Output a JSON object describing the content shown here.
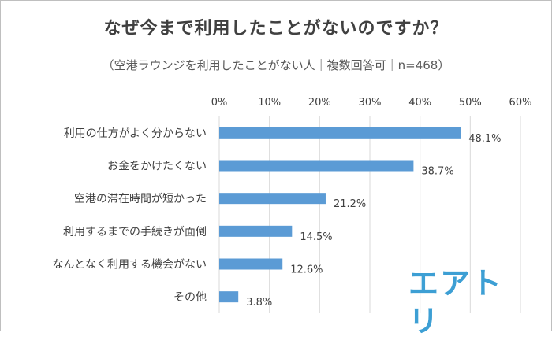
{
  "title": "なぜ今まで利用したことがないのですか？",
  "subtitle": "（空港ラウンジを利用したことがない人｜複数回答可｜n=468）",
  "logo_text": "エアトリ",
  "colors": {
    "bar": "#5b9bd5",
    "grid": "#d9d9d9",
    "text": "#404040",
    "logo": "#3d9fd4"
  },
  "chart_data": {
    "type": "bar",
    "orientation": "horizontal",
    "categories": [
      "利用の仕方がよく分からない",
      "お金をかけたくない",
      "空港の滞在時間が短かった",
      "利用するまでの手続きが面倒",
      "なんとなく利用する機会がない",
      "その他"
    ],
    "values": [
      48.1,
      38.7,
      21.2,
      14.5,
      12.6,
      3.8
    ],
    "data_labels": [
      "48.1%",
      "38.7%",
      "21.2%",
      "14.5%",
      "12.6%",
      "3.8%"
    ],
    "xlim": [
      0,
      60
    ],
    "xticks": [
      0,
      10,
      20,
      30,
      40,
      50,
      60
    ],
    "xtick_labels": [
      "0%",
      "10%",
      "20%",
      "30%",
      "40%",
      "50%",
      "60%"
    ],
    "grid": true,
    "axis_position": "top",
    "legend": false
  }
}
